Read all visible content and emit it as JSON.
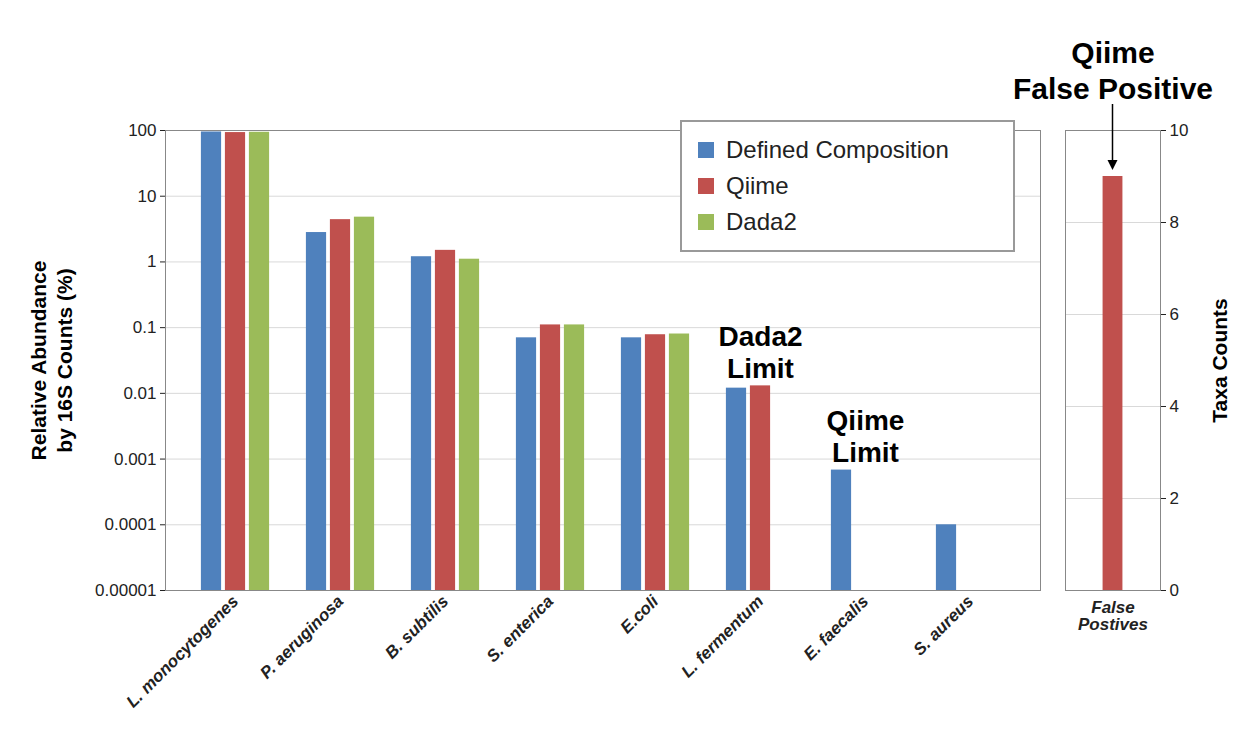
{
  "chart_data": [
    {
      "type": "bar",
      "y_label": "Relative Abundance\nby 16S Counts (%)",
      "categories": [
        "L. monocytogenes",
        "P. aeruginosa",
        "B. subtilis",
        "S. enterica",
        "E.coli",
        "L. fermentum",
        "E. faecalis",
        "S. aureus"
      ],
      "series": [
        {
          "name": "Defined Composition",
          "color": "#4f81bd",
          "values": [
            95,
            2.8,
            1.2,
            0.07,
            0.07,
            0.012,
            0.00068,
            0.0001
          ]
        },
        {
          "name": "Qiime",
          "color": "#c0504d",
          "values": [
            93,
            4.4,
            1.5,
            0.11,
            0.078,
            0.013,
            null,
            null
          ]
        },
        {
          "name": "Dada2",
          "color": "#9bbb59",
          "values": [
            94,
            4.8,
            1.1,
            0.11,
            0.08,
            null,
            null,
            null
          ]
        }
      ],
      "ylim": [
        1e-05,
        100
      ],
      "yticks": [
        {
          "value": 1e-05,
          "label": "0.00001"
        },
        0.0001,
        0.001,
        0.01,
        0.1,
        1,
        10,
        100
      ],
      "log": "y",
      "grid": true,
      "legend": "top-right",
      "annotations": [
        {
          "text": "Dada2\nLimit",
          "category": "L. fermentum"
        },
        {
          "text": "Qiime\nLimit",
          "category": "E. faecalis"
        }
      ]
    },
    {
      "type": "bar",
      "y_label": "Taxa Counts",
      "categories": [
        "False\nPostives"
      ],
      "series": [
        {
          "name": "Qiime",
          "color": "#c0504d",
          "values": [
            9
          ]
        }
      ],
      "ylim": [
        0,
        10
      ],
      "yticks": [
        0,
        2,
        4,
        6,
        8,
        10
      ],
      "grid": true,
      "annotations": [
        {
          "text": "Qiime\nFalse Positive",
          "category": "False\nPostives"
        }
      ]
    }
  ]
}
